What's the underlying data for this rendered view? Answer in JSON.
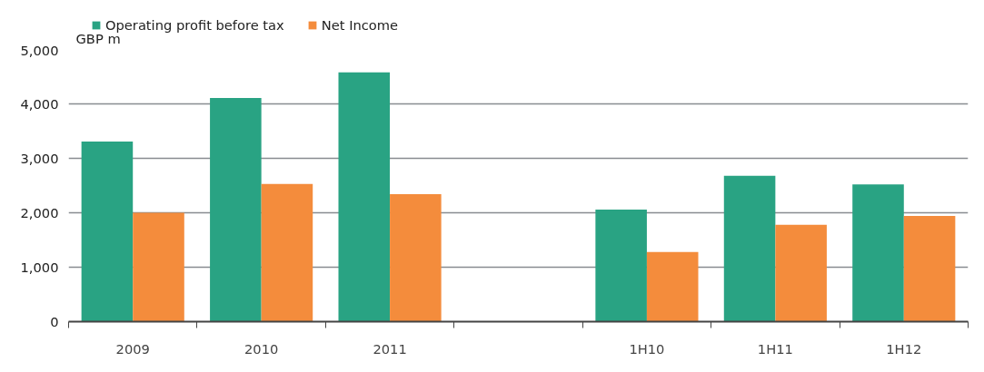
{
  "chart_data": {
    "type": "bar",
    "ylabel": "GBP m",
    "categories": [
      "2009",
      "2010",
      "2011",
      null,
      "1H10",
      "1H11",
      "1H12"
    ],
    "series": [
      {
        "name": "Operating profit before tax",
        "color": "#29a383",
        "values": [
          3310,
          4110,
          4580,
          null,
          2060,
          2680,
          2520
        ]
      },
      {
        "name": "Net Income",
        "color": "#f48c3c",
        "values": [
          2000,
          2530,
          2340,
          null,
          1280,
          1780,
          1940
        ]
      }
    ],
    "ylim": [
      0,
      5000
    ],
    "yticks": [
      {
        "value": 0,
        "label": "0"
      },
      {
        "value": 1000,
        "label": "1,000"
      },
      {
        "value": 2000,
        "label": "2,000"
      },
      {
        "value": 3000,
        "label": "3,000"
      },
      {
        "value": 4000,
        "label": "4,000"
      },
      {
        "value": 5000,
        "label": "5,000"
      }
    ],
    "grid": "y",
    "legend": "top left"
  }
}
